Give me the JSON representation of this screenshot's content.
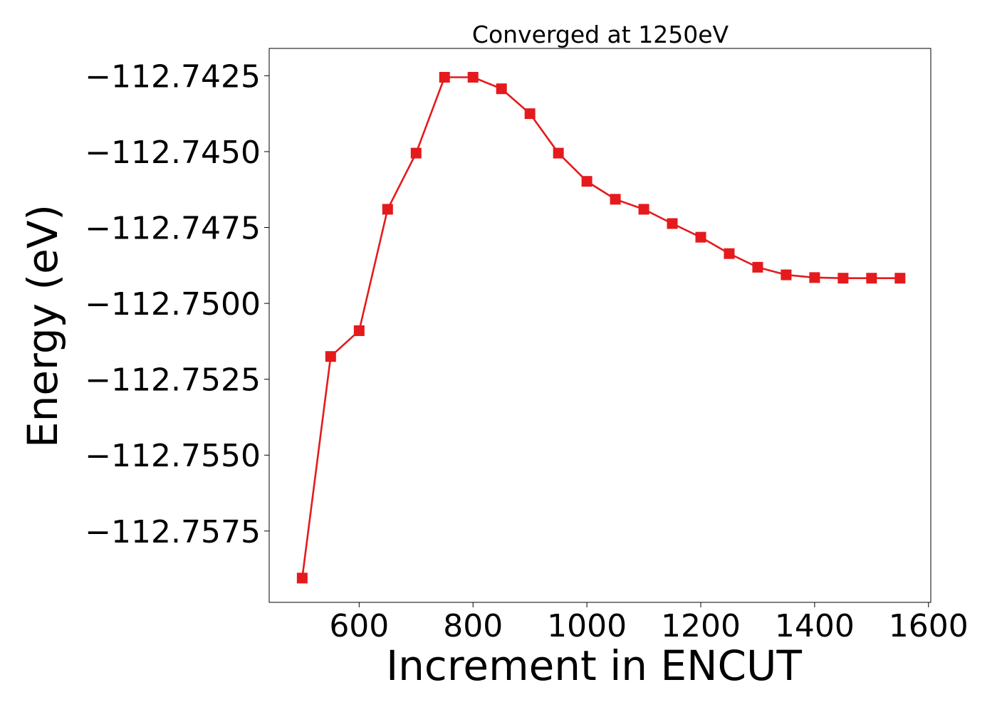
{
  "chart_data": {
    "type": "line",
    "title": "Converged at 1250eV",
    "xlabel": "Increment in ENCUT",
    "ylabel": "Energy (eV)",
    "xlim": [
      442,
      1604
    ],
    "ylim": [
      -112.75985,
      -112.7416
    ],
    "xticks": [
      600,
      800,
      1000,
      1200,
      1400,
      1600
    ],
    "yticks": [
      -112.7425,
      -112.745,
      -112.7475,
      -112.75,
      -112.7525,
      -112.755,
      -112.7575
    ],
    "ytick_labels": [
      "−112.7425",
      "−112.7450",
      "−112.7475",
      "−112.7500",
      "−112.7525",
      "−112.7550",
      "−112.7575"
    ],
    "grid": false,
    "series": [
      {
        "color": "#e41a1c",
        "marker": "square",
        "x": [
          500,
          550,
          600,
          650,
          700,
          750,
          800,
          850,
          900,
          950,
          1000,
          1050,
          1100,
          1150,
          1200,
          1250,
          1300,
          1350,
          1400,
          1450,
          1500,
          1550
        ],
        "y": [
          -112.75905,
          -112.75175,
          -112.7509,
          -112.7469,
          -112.74505,
          -112.74255,
          -112.74255,
          -112.74293,
          -112.74375,
          -112.74505,
          -112.74598,
          -112.74657,
          -112.7469,
          -112.74737,
          -112.74782,
          -112.74836,
          -112.74881,
          -112.74906,
          -112.74915,
          -112.74917,
          -112.74917,
          -112.74917
        ]
      }
    ]
  }
}
